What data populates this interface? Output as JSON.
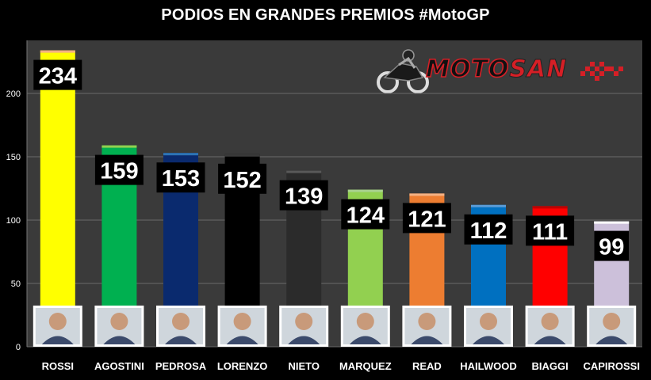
{
  "title": "PODIOS EN GRANDES PREMIOS #MotoGP",
  "logo": {
    "part1": "MOTO",
    "part2": "SAN"
  },
  "chart_data": {
    "type": "bar",
    "title": "PODIOS EN GRANDES PREMIOS #MotoGP",
    "categories": [
      "ROSSI",
      "AGOSTINI",
      "PEDROSA",
      "LORENZO",
      "NIETO",
      "MARQUEZ",
      "READ",
      "HAILWOOD",
      "BIAGGI",
      "CAPIROSSI"
    ],
    "values": [
      234,
      159,
      153,
      152,
      139,
      124,
      121,
      112,
      111,
      99
    ],
    "colors": [
      "#ffff00",
      "#00b050",
      "#0a2a6e",
      "#000000",
      "#2b2b2b",
      "#92d050",
      "#ed7d31",
      "#0070c0",
      "#ff0000",
      "#ccc0da"
    ],
    "cap_colors": [
      "#f4b183",
      "#92d050",
      "#2e75b6",
      "#3a3a3a",
      "#595959",
      "#a9d18e",
      "#f4b183",
      "#5b9bd5",
      "#c00000",
      "#ffffff"
    ],
    "yticks": [
      0,
      50,
      100,
      150,
      200
    ],
    "ylim": [
      0,
      240
    ],
    "grid": true,
    "xlabel": "",
    "ylabel": ""
  }
}
